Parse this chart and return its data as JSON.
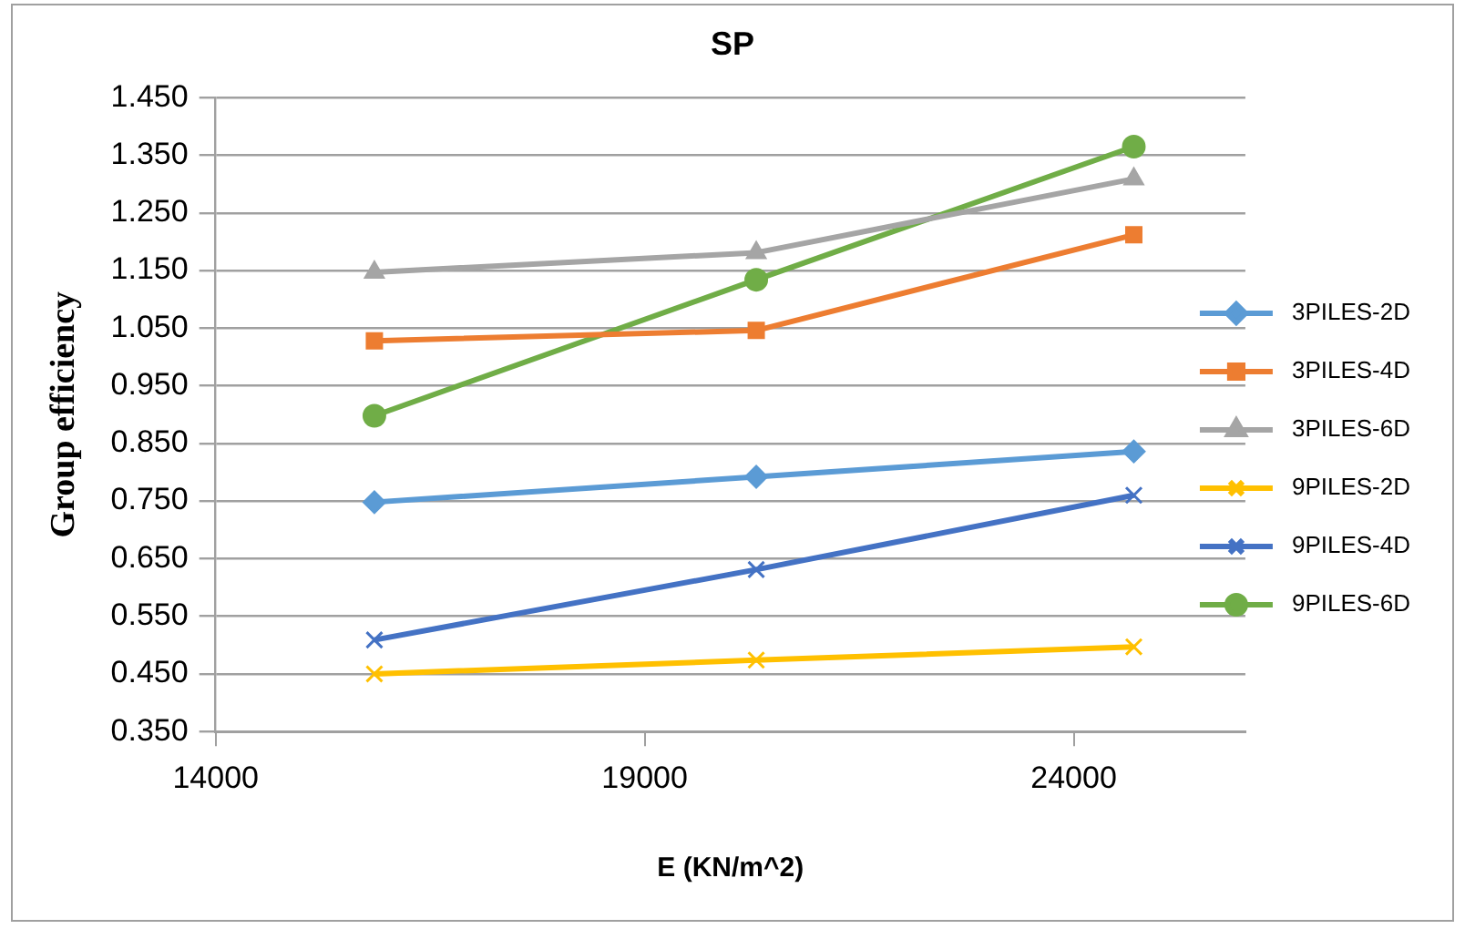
{
  "chart_data": {
    "type": "line",
    "title": "SP",
    "xlabel": "E (KN/m^2)",
    "ylabel": "Group efficiency",
    "xlim": [
      14000,
      26000
    ],
    "xticks": [
      14000,
      19000,
      24000
    ],
    "ylim": [
      0.35,
      1.45
    ],
    "yticks": [
      {
        "value": 0.35,
        "label": "0.350"
      },
      {
        "value": 0.45,
        "label": "0.450"
      },
      {
        "value": 0.55,
        "label": "0.550"
      },
      {
        "value": 0.65,
        "label": "0.650"
      },
      {
        "value": 0.75,
        "label": "0.750"
      },
      {
        "value": 0.85,
        "label": "0.850"
      },
      {
        "value": 0.95,
        "label": "0.950"
      },
      {
        "value": 1.05,
        "label": "1.050"
      },
      {
        "value": 1.15,
        "label": "1.150"
      },
      {
        "value": 1.25,
        "label": "1.250"
      },
      {
        "value": 1.35,
        "label": "1.350"
      },
      {
        "value": 1.45,
        "label": "1.450"
      }
    ],
    "x": [
      15850,
      20300,
      24700
    ],
    "grid": "y",
    "legend": "right",
    "line_style": "solid",
    "series": [
      {
        "name": "3PILES-2D",
        "color": "#5b9bd5",
        "marker": "diamond",
        "values": [
          0.748,
          0.792,
          0.836
        ]
      },
      {
        "name": "3PILES-4D",
        "color": "#ed7d31",
        "marker": "square",
        "values": [
          1.028,
          1.046,
          1.212
        ]
      },
      {
        "name": "3PILES-6D",
        "color": "#a5a5a5",
        "marker": "triangle",
        "values": [
          1.147,
          1.181,
          1.309
        ]
      },
      {
        "name": "9PILES-2D",
        "color": "#ffc000",
        "marker": "cross",
        "values": [
          0.45,
          0.474,
          0.497
        ]
      },
      {
        "name": "9PILES-4D",
        "color": "#4472c4",
        "marker": "cross",
        "values": [
          0.509,
          0.631,
          0.76
        ]
      },
      {
        "name": "9PILES-6D",
        "color": "#70ad47",
        "marker": "circle",
        "values": [
          0.898,
          1.134,
          1.365
        ]
      }
    ]
  }
}
